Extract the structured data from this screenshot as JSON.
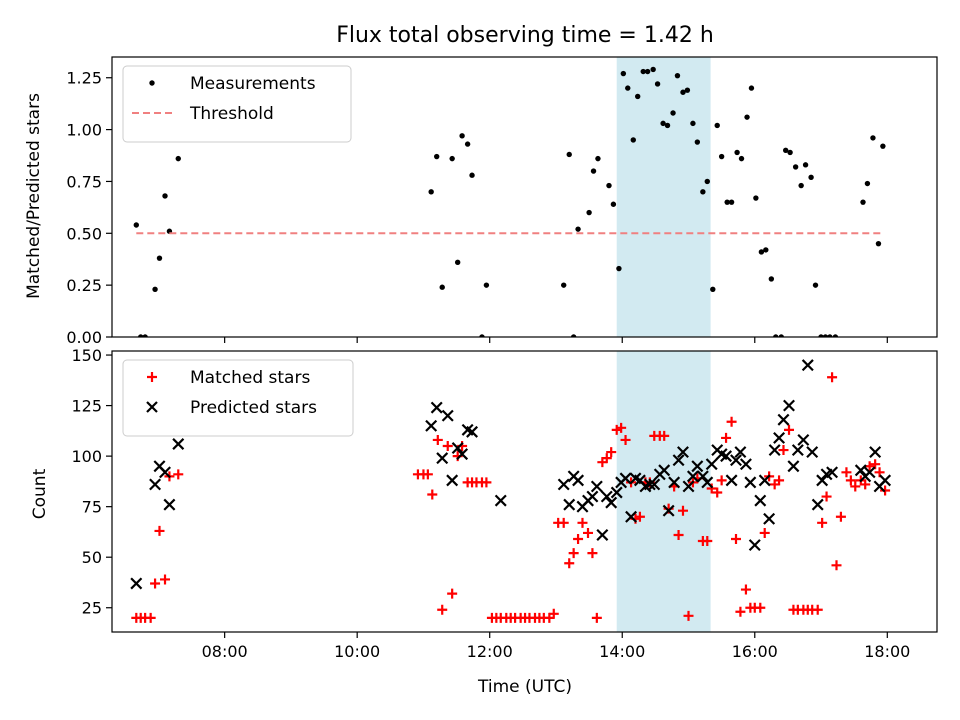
{
  "chart_data": [
    {
      "type": "scatter",
      "title": "Flux total observing time = 1.42 h",
      "ylabel": "Matched/Predicted stars",
      "xlabel": "",
      "xlim": [
        "06:18",
        "18:45"
      ],
      "ylim": [
        0,
        1.35
      ],
      "yticks": [
        "0.00",
        "0.25",
        "0.50",
        "0.75",
        "1.00",
        "1.25"
      ],
      "grid": false,
      "legend_placement": "upper-left",
      "highlight_span": {
        "start": "13:55",
        "end": "15:20",
        "color": "#add8e6"
      },
      "series": [
        {
          "name": "Measurements",
          "marker": "dot",
          "color": "#000000",
          "x": [
            "06:40",
            "06:44",
            "06:48",
            "06:57",
            "07:01",
            "07:06",
            "07:10",
            "07:18",
            "11:07",
            "11:12",
            "11:17",
            "11:26",
            "11:31",
            "11:35",
            "11:40",
            "11:44",
            "11:53",
            "11:57",
            "13:07",
            "13:12",
            "13:16",
            "13:20",
            "13:30",
            "13:34",
            "13:38",
            "13:48",
            "13:52",
            "13:57",
            "14:01",
            "14:05",
            "14:10",
            "14:14",
            "14:19",
            "14:23",
            "14:28",
            "14:32",
            "14:37",
            "14:41",
            "14:46",
            "14:50",
            "14:55",
            "14:59",
            "15:04",
            "15:08",
            "15:13",
            "15:17",
            "15:22",
            "15:26",
            "15:30",
            "15:35",
            "15:39",
            "15:44",
            "15:48",
            "15:53",
            "15:57",
            "16:01",
            "16:06",
            "16:10",
            "16:15",
            "16:19",
            "16:24",
            "16:28",
            "16:32",
            "16:37",
            "16:42",
            "16:46",
            "16:51",
            "16:55",
            "17:00",
            "17:04",
            "17:08",
            "17:13",
            "17:38",
            "17:42",
            "17:47",
            "17:52",
            "17:56"
          ],
          "y": [
            0.54,
            0.0,
            0.0,
            0.23,
            0.38,
            0.68,
            0.51,
            0.86,
            0.7,
            0.87,
            0.24,
            0.86,
            0.36,
            0.97,
            0.93,
            0.78,
            0.0,
            0.25,
            0.25,
            0.88,
            0.0,
            0.52,
            0.6,
            0.8,
            0.86,
            0.73,
            0.64,
            0.33,
            1.27,
            1.2,
            0.95,
            1.16,
            1.28,
            1.28,
            1.29,
            1.22,
            1.03,
            1.02,
            1.08,
            1.26,
            1.18,
            1.19,
            1.03,
            0.94,
            0.7,
            0.75,
            0.23,
            1.02,
            0.87,
            0.65,
            0.65,
            0.89,
            0.86,
            1.06,
            1.2,
            0.67,
            0.41,
            0.42,
            0.28,
            0.0,
            0.0,
            0.9,
            0.89,
            0.82,
            0.73,
            0.83,
            0.77,
            0.25,
            0.0,
            0.0,
            0.0,
            0.0,
            0.65,
            0.74,
            0.96,
            0.45,
            0.92
          ]
        },
        {
          "name": "Threshold",
          "marker": "dashed-line",
          "color": "#f08080",
          "x": [
            "06:40",
            "17:56"
          ],
          "y": [
            0.5,
            0.5
          ]
        }
      ]
    },
    {
      "type": "scatter",
      "title": "",
      "ylabel": "Count",
      "xlabel": "Time (UTC)",
      "xlim": [
        "06:18",
        "18:45"
      ],
      "ylim": [
        13,
        152
      ],
      "yticks": [
        "25",
        "50",
        "75",
        "100",
        "125",
        "150"
      ],
      "xticks": [
        "08:00",
        "10:00",
        "12:00",
        "14:00",
        "16:00",
        "18:00"
      ],
      "grid": false,
      "legend_placement": "upper-left",
      "highlight_span": {
        "start": "13:55",
        "end": "15:20",
        "color": "#add8e6"
      },
      "series": [
        {
          "name": "Matched stars",
          "marker": "plus",
          "color": "#ff0000",
          "x": [
            "06:40",
            "06:44",
            "06:48",
            "06:53",
            "06:57",
            "07:01",
            "07:06",
            "07:10",
            "07:18",
            "10:55",
            "11:00",
            "11:04",
            "11:08",
            "11:13",
            "11:17",
            "11:22",
            "11:26",
            "11:31",
            "11:35",
            "11:40",
            "11:44",
            "11:48",
            "11:53",
            "11:57",
            "12:02",
            "12:06",
            "12:10",
            "12:15",
            "12:19",
            "12:23",
            "12:28",
            "12:32",
            "12:36",
            "12:41",
            "12:45",
            "12:49",
            "12:54",
            "12:58",
            "13:02",
            "13:07",
            "13:12",
            "13:16",
            "13:20",
            "13:24",
            "13:29",
            "13:33",
            "13:37",
            "13:42",
            "13:46",
            "13:50",
            "13:55",
            "13:59",
            "14:03",
            "14:08",
            "14:12",
            "14:16",
            "14:21",
            "14:25",
            "14:29",
            "14:34",
            "14:38",
            "14:42",
            "14:47",
            "14:51",
            "14:55",
            "15:00",
            "15:04",
            "15:08",
            "15:13",
            "15:17",
            "15:21",
            "15:26",
            "15:30",
            "15:34",
            "15:39",
            "15:43",
            "15:47",
            "15:52",
            "15:56",
            "16:00",
            "16:05",
            "16:09",
            "16:13",
            "16:18",
            "16:22",
            "16:26",
            "16:31",
            "16:35",
            "16:39",
            "16:44",
            "16:48",
            "16:52",
            "16:57",
            "17:01",
            "17:05",
            "17:10",
            "17:14",
            "17:18",
            "17:23",
            "17:27",
            "17:31",
            "17:36",
            "17:40",
            "17:44",
            "17:49",
            "17:53",
            "17:58"
          ],
          "y": [
            20,
            20,
            20,
            20,
            37,
            63,
            39,
            90,
            91,
            91,
            91,
            91,
            81,
            108,
            24,
            105,
            32,
            100,
            105,
            87,
            87,
            87,
            87,
            87,
            20,
            20,
            20,
            20,
            20,
            20,
            20,
            20,
            20,
            20,
            20,
            20,
            20,
            22,
            67,
            67,
            47,
            52,
            59,
            67,
            62,
            52,
            20,
            97,
            99,
            102,
            113,
            114,
            108,
            87,
            69,
            70,
            87,
            87,
            110,
            110,
            110,
            74,
            85,
            61,
            73,
            21,
            87,
            89,
            58,
            58,
            84,
            82,
            88,
            109,
            117,
            59,
            23,
            34,
            25,
            25,
            25,
            62,
            90,
            86,
            88,
            103,
            113,
            24,
            24,
            24,
            24,
            24,
            24,
            67,
            80,
            139,
            46,
            70,
            92,
            88,
            85,
            88,
            86,
            95,
            96,
            92,
            83
          ]
        },
        {
          "name": "Predicted stars",
          "marker": "x",
          "color": "#000000",
          "x": [
            "06:40",
            "06:57",
            "07:01",
            "07:06",
            "07:10",
            "07:18",
            "11:07",
            "11:12",
            "11:17",
            "11:22",
            "11:26",
            "11:31",
            "11:35",
            "11:40",
            "11:44",
            "12:10",
            "13:07",
            "13:12",
            "13:16",
            "13:20",
            "13:24",
            "13:29",
            "13:33",
            "13:37",
            "13:42",
            "13:46",
            "13:50",
            "13:55",
            "13:59",
            "14:03",
            "14:08",
            "14:12",
            "14:16",
            "14:21",
            "14:25",
            "14:29",
            "14:34",
            "14:38",
            "14:42",
            "14:47",
            "14:51",
            "14:55",
            "15:00",
            "15:04",
            "15:08",
            "15:13",
            "15:17",
            "15:21",
            "15:26",
            "15:30",
            "15:34",
            "15:39",
            "15:43",
            "15:47",
            "15:52",
            "15:56",
            "16:00",
            "16:05",
            "16:09",
            "16:13",
            "16:18",
            "16:22",
            "16:26",
            "16:31",
            "16:35",
            "16:39",
            "16:44",
            "16:48",
            "16:52",
            "16:57",
            "17:01",
            "17:05",
            "17:10",
            "17:36",
            "17:40",
            "17:44",
            "17:49",
            "17:53",
            "17:58"
          ],
          "y": [
            37,
            86,
            95,
            92,
            76,
            106,
            115,
            124,
            99,
            120,
            88,
            104,
            101,
            113,
            112,
            78,
            86,
            76,
            90,
            88,
            75,
            78,
            80,
            85,
            61,
            80,
            77,
            82,
            87,
            89,
            70,
            89,
            88,
            85,
            86,
            86,
            91,
            93,
            73,
            87,
            98,
            102,
            85,
            90,
            95,
            90,
            87,
            96,
            103,
            101,
            100,
            88,
            98,
            102,
            96,
            87,
            56,
            78,
            88,
            69,
            103,
            109,
            118,
            125,
            95,
            103,
            108,
            145,
            102,
            76,
            88,
            91,
            92,
            93,
            90,
            92,
            102,
            85,
            88
          ]
        }
      ]
    }
  ]
}
